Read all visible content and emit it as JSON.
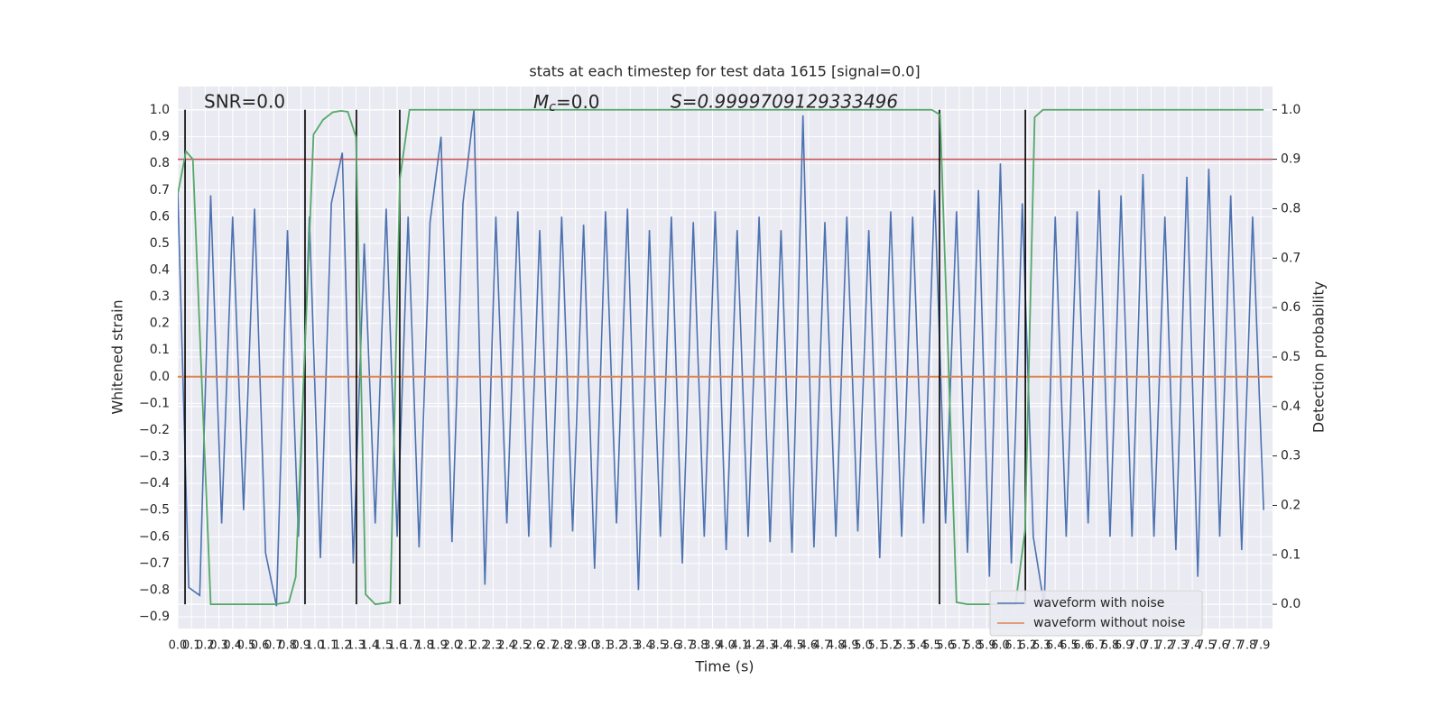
{
  "chart_data": {
    "type": "line",
    "title": "stats at each timestep for test data 1615 [signal=0.0]",
    "xlabel": "Time (s)",
    "ylabel": "Whitened strain",
    "y2label": "Detection probability",
    "annotations": [
      "SNR=0.0",
      {
        "var": "M",
        "sub": "c",
        "rest": "=0.0"
      },
      "S=0.9999709129333496"
    ],
    "background": "#eaeaf2",
    "grid": true,
    "legend": "lower right",
    "xlim": [
      0,
      7.985
    ],
    "ylim": [
      -0.944,
      1.088
    ],
    "y2lim": [
      -0.049,
      1.047
    ],
    "xticks": [
      {
        "value": 0,
        "label": "0.0"
      },
      0.1,
      0.2,
      0.3,
      0.4,
      0.5,
      0.6,
      0.7,
      0.8,
      0.9,
      {
        "value": 1,
        "label": "1.0"
      },
      1.1,
      1.2,
      1.3,
      1.4,
      1.5,
      1.6,
      1.7,
      1.8,
      1.9,
      {
        "value": 2,
        "label": "2.0"
      },
      2.1,
      2.2,
      2.3,
      2.4,
      2.5,
      2.6,
      2.7,
      2.8,
      2.9,
      {
        "value": 3,
        "label": "3.0"
      },
      3.1,
      3.2,
      3.3,
      3.4,
      3.5,
      3.6,
      3.7,
      3.8,
      3.9,
      {
        "value": 4,
        "label": "4.0"
      },
      4.1,
      4.2,
      4.3,
      4.4,
      4.5,
      4.6,
      4.7,
      4.8,
      4.9,
      {
        "value": 5,
        "label": "5.0"
      },
      5.1,
      5.2,
      5.3,
      5.4,
      5.5,
      5.6,
      5.7,
      5.8,
      5.9,
      {
        "value": 6,
        "label": "6.0"
      },
      6.1,
      6.2,
      6.3,
      6.4,
      6.5,
      6.6,
      6.7,
      6.8,
      6.9,
      {
        "value": 7,
        "label": "7.0"
      },
      7.1,
      7.2,
      7.3,
      7.4,
      7.5,
      7.6,
      7.7,
      7.8,
      7.9
    ],
    "yticks": [
      {
        "value": -0.9,
        "label": "−0.9"
      },
      {
        "value": -0.8,
        "label": "−0.8"
      },
      {
        "value": -0.7,
        "label": "−0.7"
      },
      {
        "value": -0.6,
        "label": "−0.6"
      },
      {
        "value": -0.5,
        "label": "−0.5"
      },
      {
        "value": -0.4,
        "label": "−0.4"
      },
      {
        "value": -0.3,
        "label": "−0.3"
      },
      {
        "value": -0.2,
        "label": "−0.2"
      },
      {
        "value": -0.1,
        "label": "−0.1"
      },
      {
        "value": 0,
        "label": "0.0"
      },
      0.1,
      0.2,
      0.3,
      0.4,
      0.5,
      0.6,
      0.7,
      0.8,
      0.9,
      {
        "value": 1,
        "label": "1.0"
      }
    ],
    "y2ticks": [
      {
        "value": 0,
        "label": "0.0"
      },
      0.1,
      0.2,
      0.3,
      0.4,
      0.5,
      0.6,
      0.7,
      0.8,
      0.9,
      {
        "value": 1,
        "label": "1.0"
      }
    ],
    "series": [
      {
        "name": "waveform with noise",
        "color": "#4c72b0",
        "x": [
          0,
          0.08,
          0.16,
          0.24,
          0.32,
          0.4,
          0.48,
          0.56,
          0.64,
          0.72,
          0.8,
          0.88,
          0.96,
          1.04,
          1.12,
          1.2,
          1.28,
          1.36,
          1.44,
          1.52,
          1.6,
          1.68,
          1.76,
          1.84,
          1.92,
          2,
          2.08,
          2.16,
          2.24,
          2.32,
          2.4,
          2.48,
          2.56,
          2.64,
          2.72,
          2.8,
          2.88,
          2.96,
          3.04,
          3.12,
          3.2,
          3.28,
          3.36,
          3.44,
          3.52,
          3.6,
          3.68,
          3.76,
          3.84,
          3.92,
          4,
          4.08,
          4.16,
          4.24,
          4.32,
          4.4,
          4.48,
          4.56,
          4.64,
          4.72,
          4.8,
          4.88,
          4.96,
          5.04,
          5.12,
          5.2,
          5.28,
          5.36,
          5.44,
          5.52,
          5.6,
          5.68,
          5.76,
          5.84,
          5.92,
          6,
          6.08,
          6.16,
          6.24,
          6.32,
          6.4,
          6.48,
          6.56,
          6.64,
          6.72,
          6.8,
          6.88,
          6.96,
          7.04,
          7.12,
          7.2,
          7.28,
          7.36,
          7.44,
          7.52,
          7.6,
          7.68,
          7.76,
          7.84,
          7.92
        ],
        "values": [
          0.69,
          -0.79,
          -0.82,
          0.68,
          -0.55,
          0.6,
          -0.5,
          0.63,
          -0.66,
          -0.86,
          0.55,
          -0.6,
          0.6,
          -0.68,
          0.65,
          0.84,
          -0.7,
          0.5,
          -0.55,
          0.63,
          -0.6,
          0.6,
          -0.64,
          0.58,
          0.9,
          -0.62,
          0.65,
          1.0,
          -0.78,
          0.6,
          -0.55,
          0.62,
          -0.6,
          0.55,
          -0.64,
          0.6,
          -0.58,
          0.57,
          -0.72,
          0.62,
          -0.55,
          0.63,
          -0.8,
          0.55,
          -0.6,
          0.6,
          -0.7,
          0.58,
          -0.6,
          0.62,
          -0.65,
          0.55,
          -0.6,
          0.6,
          -0.62,
          0.55,
          -0.66,
          0.98,
          -0.64,
          0.58,
          -0.6,
          0.6,
          -0.58,
          0.55,
          -0.68,
          0.62,
          -0.6,
          0.6,
          -0.55,
          0.7,
          -0.55,
          0.62,
          -0.66,
          0.7,
          -0.75,
          0.8,
          -0.7,
          0.65,
          -0.6,
          -0.86,
          0.6,
          -0.6,
          0.62,
          -0.55,
          0.7,
          -0.6,
          0.68,
          -0.6,
          0.76,
          -0.6,
          0.6,
          -0.65,
          0.75,
          -0.75,
          0.78,
          -0.6,
          0.68,
          -0.65,
          0.6,
          -0.5
        ]
      },
      {
        "name": "waveform without noise",
        "color": "#dd8452",
        "x": [
          0,
          7.985
        ],
        "values": [
          0,
          0
        ]
      }
    ],
    "detection": {
      "color": "#55a868",
      "x": [
        0,
        0.06,
        0.11,
        0.24,
        0.71,
        0.81,
        0.86,
        0.99,
        1.06,
        1.13,
        1.19,
        1.24,
        1.3,
        1.37,
        1.44,
        1.55,
        1.62,
        1.69,
        5.5,
        5.56,
        5.68,
        5.76,
        6.11,
        6.18,
        6.25,
        6.31,
        7.92
      ],
      "values": [
        0.83,
        0.916,
        0.9,
        0,
        0,
        0.004,
        0.055,
        0.95,
        0.98,
        0.995,
        0.998,
        0.996,
        0.945,
        0.02,
        0,
        0.004,
        0.86,
        1.0,
        1.0,
        0.99,
        0.004,
        0,
        0,
        0.15,
        0.985,
        1.0,
        1.0
      ]
    },
    "threshold": {
      "value": 0.9,
      "color": "#c44e52"
    },
    "markers": {
      "color": "#000000",
      "x": [
        0.053,
        0.928,
        1.303,
        1.619,
        5.556,
        6.182
      ]
    }
  }
}
